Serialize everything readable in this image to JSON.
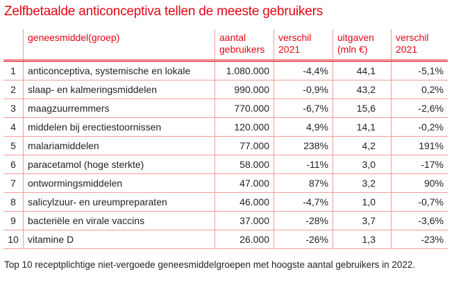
{
  "title": "Zelfbetaalde anticonceptiva tellen de meeste gebruikers",
  "chart_data": {
    "type": "table",
    "title": "Zelfbetaalde anticonceptiva tellen de meeste gebruikers",
    "columns": [
      "",
      "geneesmiddel(groep)",
      "aantal gebruikers",
      "verschil 2021",
      "uitgaven (mln €)",
      "verschil 2021"
    ],
    "rows": [
      [
        "1",
        "anticonceptiva, systemische en lokale",
        "1.080.000",
        "-4,4%",
        "44,1",
        "-5,1%"
      ],
      [
        "2",
        "slaap- en kalmeringsmiddelen",
        "990.000",
        "-0,9%",
        "43,2",
        "0,2%"
      ],
      [
        "3",
        "maagzuurremmers",
        "770.000",
        "-6,7%",
        "15,6",
        "-2,6%"
      ],
      [
        "4",
        "middelen bij erectiestoornissen",
        "120.000",
        "4,9%",
        "14,1",
        "-0,2%"
      ],
      [
        "5",
        "malariamiddelen",
        "77.000",
        "238%",
        "4,2",
        "191%"
      ],
      [
        "6",
        "paracetamol (hoge sterkte)",
        "58.000",
        "-11%",
        "3,0",
        "-17%"
      ],
      [
        "7",
        "ontwormingsmiddelen",
        "47.000",
        "87%",
        "3,2",
        "90%"
      ],
      [
        "8",
        "salicylzuur- en ureumpreparaten",
        "46.000",
        "-4,7%",
        "1,0",
        "-0,7%"
      ],
      [
        "9",
        "bacteriële en virale vaccins",
        "37.000",
        "-28%",
        "3,7",
        "-3,6%"
      ],
      [
        "10",
        "vitamine D",
        "26.000",
        "-26%",
        "1,3",
        "-23%"
      ]
    ]
  },
  "caption": "Top 10 receptplichtige niet-vergoede geneesmiddelgroepen met hoogste aantal gebruikers in 2022.",
  "colors": {
    "accent": "#e30613",
    "grid": "#f19a9a"
  }
}
